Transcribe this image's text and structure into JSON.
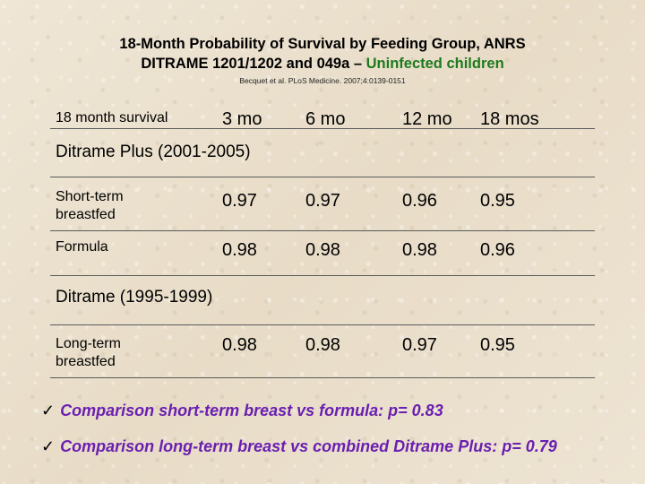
{
  "title": {
    "line1": "18-Month Probability of Survival by Feeding Group, ANRS",
    "line2_prefix": "DITRAME 1201/1202 and 049a – ",
    "line2_highlight": "Uninfected children"
  },
  "citation": "Becquet et al. PLoS Medicine. 2007;4:0139-0151",
  "table": {
    "corner_label": "18 month survival",
    "columns": [
      "3 mo",
      "6 mo",
      "12 mo",
      "18 mos"
    ],
    "sections": [
      {
        "name": "Ditrame Plus (2001-2005)",
        "rows": [
          {
            "label": "Short-term breastfed",
            "values": [
              "0.97",
              "0.97",
              "0.96",
              "0.95"
            ]
          },
          {
            "label": "Formula",
            "values": [
              "0.98",
              "0.98",
              "0.98",
              "0.96"
            ]
          }
        ]
      },
      {
        "name": "Ditrame (1995-1999)",
        "rows": [
          {
            "label": "Long-term breastfed",
            "values": [
              "0.98",
              "0.98",
              "0.97",
              "0.95"
            ]
          }
        ]
      }
    ]
  },
  "notes": [
    {
      "check": "✓",
      "text": "Comparison short-term breast vs formula:  p= 0.83"
    },
    {
      "check": "✓",
      "text": "Comparison long-term breast vs combined Ditrame Plus: p= 0.79"
    }
  ],
  "colors": {
    "highlight": "#1d7a1d",
    "notes": "#6a1fb0"
  }
}
